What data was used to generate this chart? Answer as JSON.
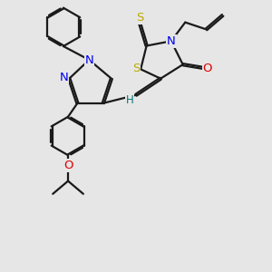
{
  "bg_color": "#e6e6e6",
  "bond_color": "#1a1a1a",
  "bond_lw": 1.6,
  "dbo": 0.042,
  "atom_colors": {
    "N": "#0000ee",
    "O": "#dd0000",
    "S": "#bbaa00",
    "H": "#007777",
    "C": "#1a1a1a"
  },
  "font_size": 9.0,
  "xlim": [
    0.5,
    10.5
  ],
  "ylim": [
    -1.5,
    10.0
  ]
}
